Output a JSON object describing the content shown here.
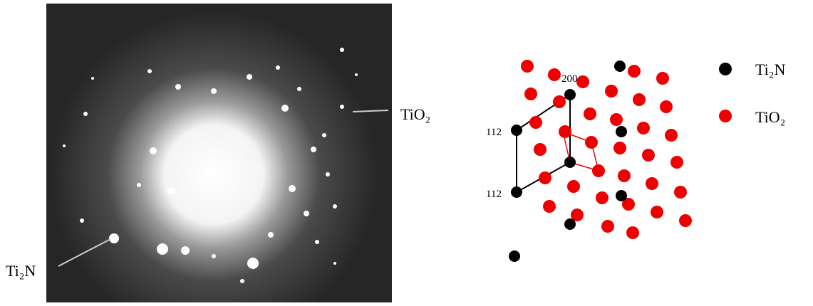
{
  "micrograph": {
    "labels": [
      "TiO₂",
      "Ti₂N"
    ]
  },
  "schematic": {
    "indices": [
      "200",
      "112",
      "112"
    ]
  },
  "legend": {
    "items": [
      "Ti₂N",
      "TiO₂"
    ]
  }
}
